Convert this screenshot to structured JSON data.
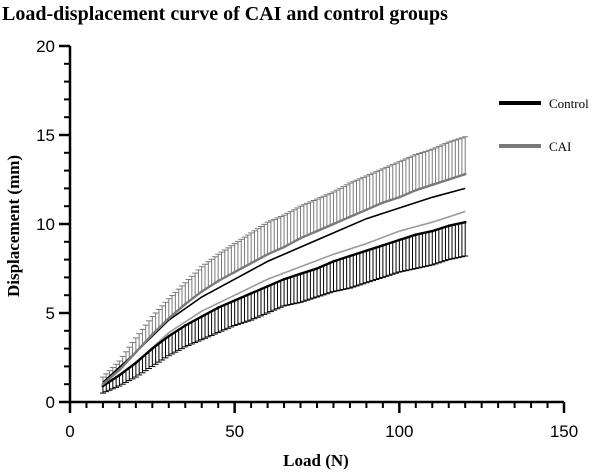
{
  "chart_data": {
    "type": "line",
    "title": "Load-displacement curve of CAI and control groups",
    "xlabel": "Load (N)",
    "ylabel": "Displacement (mm)",
    "xlim": [
      0,
      150
    ],
    "ylim": [
      0,
      20
    ],
    "xticks": [
      0,
      50,
      100,
      150
    ],
    "yticks": [
      0,
      5,
      10,
      15,
      20
    ],
    "xtick_labels": [
      "0",
      "50",
      "100",
      "150"
    ],
    "ytick_labels": [
      "0",
      "5",
      "10",
      "15",
      "20"
    ],
    "x_minor_step": 5,
    "y_minor_step": 1,
    "grid": false,
    "legend_position": "top-right",
    "error_bars": "upper for CAI, lower for Control",
    "series": [
      {
        "name": "Control",
        "color": "#000000",
        "error_direction": "down",
        "x": [
          10,
          15,
          20,
          25,
          30,
          35,
          40,
          45,
          50,
          55,
          60,
          65,
          70,
          75,
          80,
          85,
          90,
          95,
          100,
          105,
          110,
          115,
          120
        ],
        "y": [
          0.9,
          1.5,
          2.2,
          3.0,
          3.7,
          4.3,
          4.8,
          5.3,
          5.7,
          6.1,
          6.5,
          6.9,
          7.2,
          7.5,
          7.9,
          8.2,
          8.5,
          8.8,
          9.1,
          9.4,
          9.6,
          9.9,
          10.1
        ],
        "err": [
          0.4,
          0.6,
          0.8,
          1.0,
          1.1,
          1.2,
          1.3,
          1.4,
          1.4,
          1.5,
          1.5,
          1.5,
          1.6,
          1.6,
          1.7,
          1.8,
          1.8,
          1.8,
          1.8,
          1.9,
          1.9,
          1.9,
          1.9
        ]
      },
      {
        "name": "CAI",
        "color": "#7a7a7a",
        "error_direction": "up",
        "x": [
          10,
          15,
          20,
          25,
          30,
          35,
          40,
          45,
          50,
          55,
          60,
          65,
          70,
          75,
          80,
          85,
          90,
          95,
          100,
          105,
          110,
          115,
          120
        ],
        "y": [
          1.0,
          1.8,
          2.8,
          3.8,
          4.7,
          5.5,
          6.2,
          6.8,
          7.3,
          7.8,
          8.3,
          8.7,
          9.2,
          9.6,
          10.0,
          10.4,
          10.8,
          11.2,
          11.5,
          11.9,
          12.2,
          12.5,
          12.8
        ],
        "err": [
          0.4,
          0.5,
          0.8,
          1.0,
          1.1,
          1.2,
          1.4,
          1.5,
          1.6,
          1.7,
          1.8,
          1.8,
          1.8,
          1.8,
          1.8,
          1.9,
          1.9,
          1.9,
          2.0,
          2.0,
          2.0,
          2.1,
          2.1
        ]
      }
    ],
    "inner_series": [
      {
        "of": "Control",
        "label": "Control upper band",
        "color": "#000000",
        "x": [
          10,
          20,
          30,
          40,
          50,
          60,
          70,
          80,
          90,
          100,
          110,
          120
        ],
        "y": [
          1.1,
          2.8,
          4.6,
          5.9,
          6.9,
          7.9,
          8.7,
          9.5,
          10.3,
          10.9,
          11.5,
          12.0
        ]
      },
      {
        "of": "CAI",
        "label": "CAI lower band",
        "color": "#9a9a9a",
        "x": [
          10,
          20,
          30,
          40,
          50,
          60,
          70,
          80,
          90,
          100,
          110,
          120
        ],
        "y": [
          0.9,
          2.2,
          3.9,
          5.1,
          6.0,
          6.9,
          7.6,
          8.3,
          8.9,
          9.6,
          10.1,
          10.7
        ]
      }
    ]
  }
}
